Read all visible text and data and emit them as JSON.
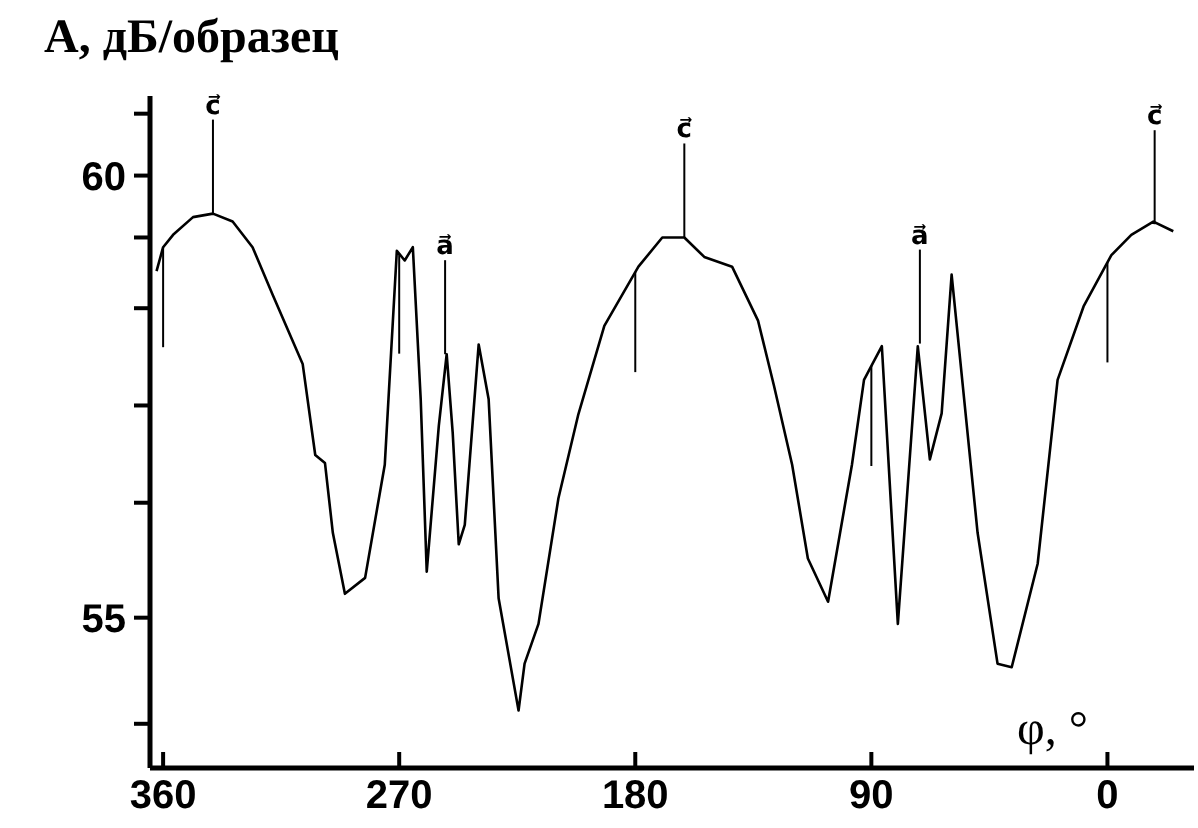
{
  "chart_data": {
    "type": "line",
    "xlabel": "φ, °",
    "ylabel": "А, дБ/образец",
    "xlim": [
      365,
      -33
    ],
    "ylim": [
      53.3,
      60.9
    ],
    "xticks": [
      360,
      270,
      180,
      90,
      0
    ],
    "yticks": [
      {
        "value": 53.8,
        "label": null
      },
      55,
      {
        "value": 56.3,
        "label": null
      },
      {
        "value": 57.4,
        "label": null
      },
      {
        "value": 58.5,
        "label": null
      },
      {
        "value": 59.3,
        "label": null
      },
      60,
      {
        "value": 60.7,
        "label": null
      }
    ],
    "series": [
      {
        "color": "#000000",
        "x": [
          362.5,
          360,
          356.2,
          348.6,
          341,
          333.5,
          325.9,
          318.2,
          306.8,
          302,
          298.3,
          295.3,
          290.7,
          283,
          275.5,
          270.9,
          267.9,
          264.8,
          261.8,
          259.5,
          254.9,
          251.9,
          249.6,
          247.3,
          245,
          239.7,
          235.9,
          232.1,
          224.5,
          222.2,
          216.9,
          209.3,
          201.7,
          191.8,
          178.8,
          169.7,
          161.3,
          153.7,
          143.1,
          133.2,
          127.1,
          120.2,
          114.2,
          106.5,
          97.4,
          92.8,
          86,
          79.9,
          72.3,
          67.7,
          63.2,
          59.4,
          49.5,
          41.9,
          36.5,
          26.6,
          19,
          9.1,
          -1.5,
          -9.1,
          -17.5,
          -25.1
        ],
        "values": [
          58.92,
          59.19,
          59.33,
          59.53,
          59.57,
          59.48,
          59.19,
          58.65,
          57.87,
          56.84,
          56.75,
          55.96,
          55.27,
          55.45,
          56.73,
          59.15,
          59.04,
          59.19,
          57.47,
          55.52,
          57.17,
          57.98,
          57.09,
          55.83,
          56.05,
          58.09,
          57.47,
          55.22,
          53.95,
          54.48,
          54.93,
          56.35,
          57.3,
          58.3,
          58.97,
          59.3,
          59.3,
          59.08,
          58.97,
          58.36,
          57.62,
          56.73,
          55.67,
          55.18,
          56.73,
          57.69,
          58.07,
          54.93,
          58.07,
          56.79,
          57.31,
          58.88,
          55.96,
          54.48,
          54.44,
          55.61,
          57.69,
          58.52,
          59.1,
          59.33,
          59.48,
          59.37
        ]
      }
    ],
    "annotations": [
      {
        "text": "c⃗",
        "x": 341,
        "y": 59.57
      },
      {
        "text": "a⃗",
        "x": 252.5,
        "y": 57.98
      },
      {
        "text": "c⃗",
        "x": 161.3,
        "y": 59.3
      },
      {
        "text": "a⃗",
        "x": 71.5,
        "y": 58.1
      },
      {
        "text": "c⃗",
        "x": -18,
        "y": 59.45
      }
    ],
    "ref_lines": [
      {
        "axis": "x",
        "value": 360
      },
      {
        "axis": "x",
        "value": 270
      },
      {
        "axis": "x",
        "value": 180
      },
      {
        "axis": "x",
        "value": 90
      },
      {
        "axis": "x",
        "value": 0
      }
    ],
    "grid": false,
    "marker": "none",
    "line_style": "solid"
  }
}
